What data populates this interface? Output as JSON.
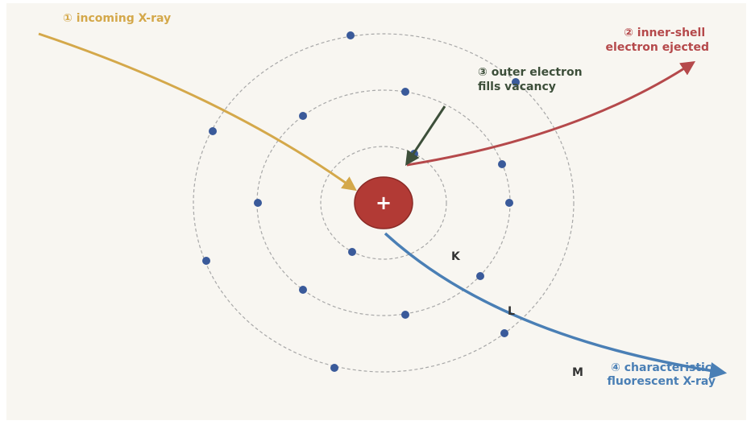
{
  "nucleus": "+",
  "shells": [
    "K",
    "L",
    "M"
  ],
  "steps": [
    {
      "lines": [
        "① incoming X-ray"
      ]
    },
    {
      "lines": [
        "② inner-shell",
        "electron ejected"
      ]
    },
    {
      "lines": [
        "③ outer electron",
        "fills vacancy"
      ]
    },
    {
      "lines": [
        "④ characteristic",
        "fluorescent X-ray"
      ]
    }
  ]
}
